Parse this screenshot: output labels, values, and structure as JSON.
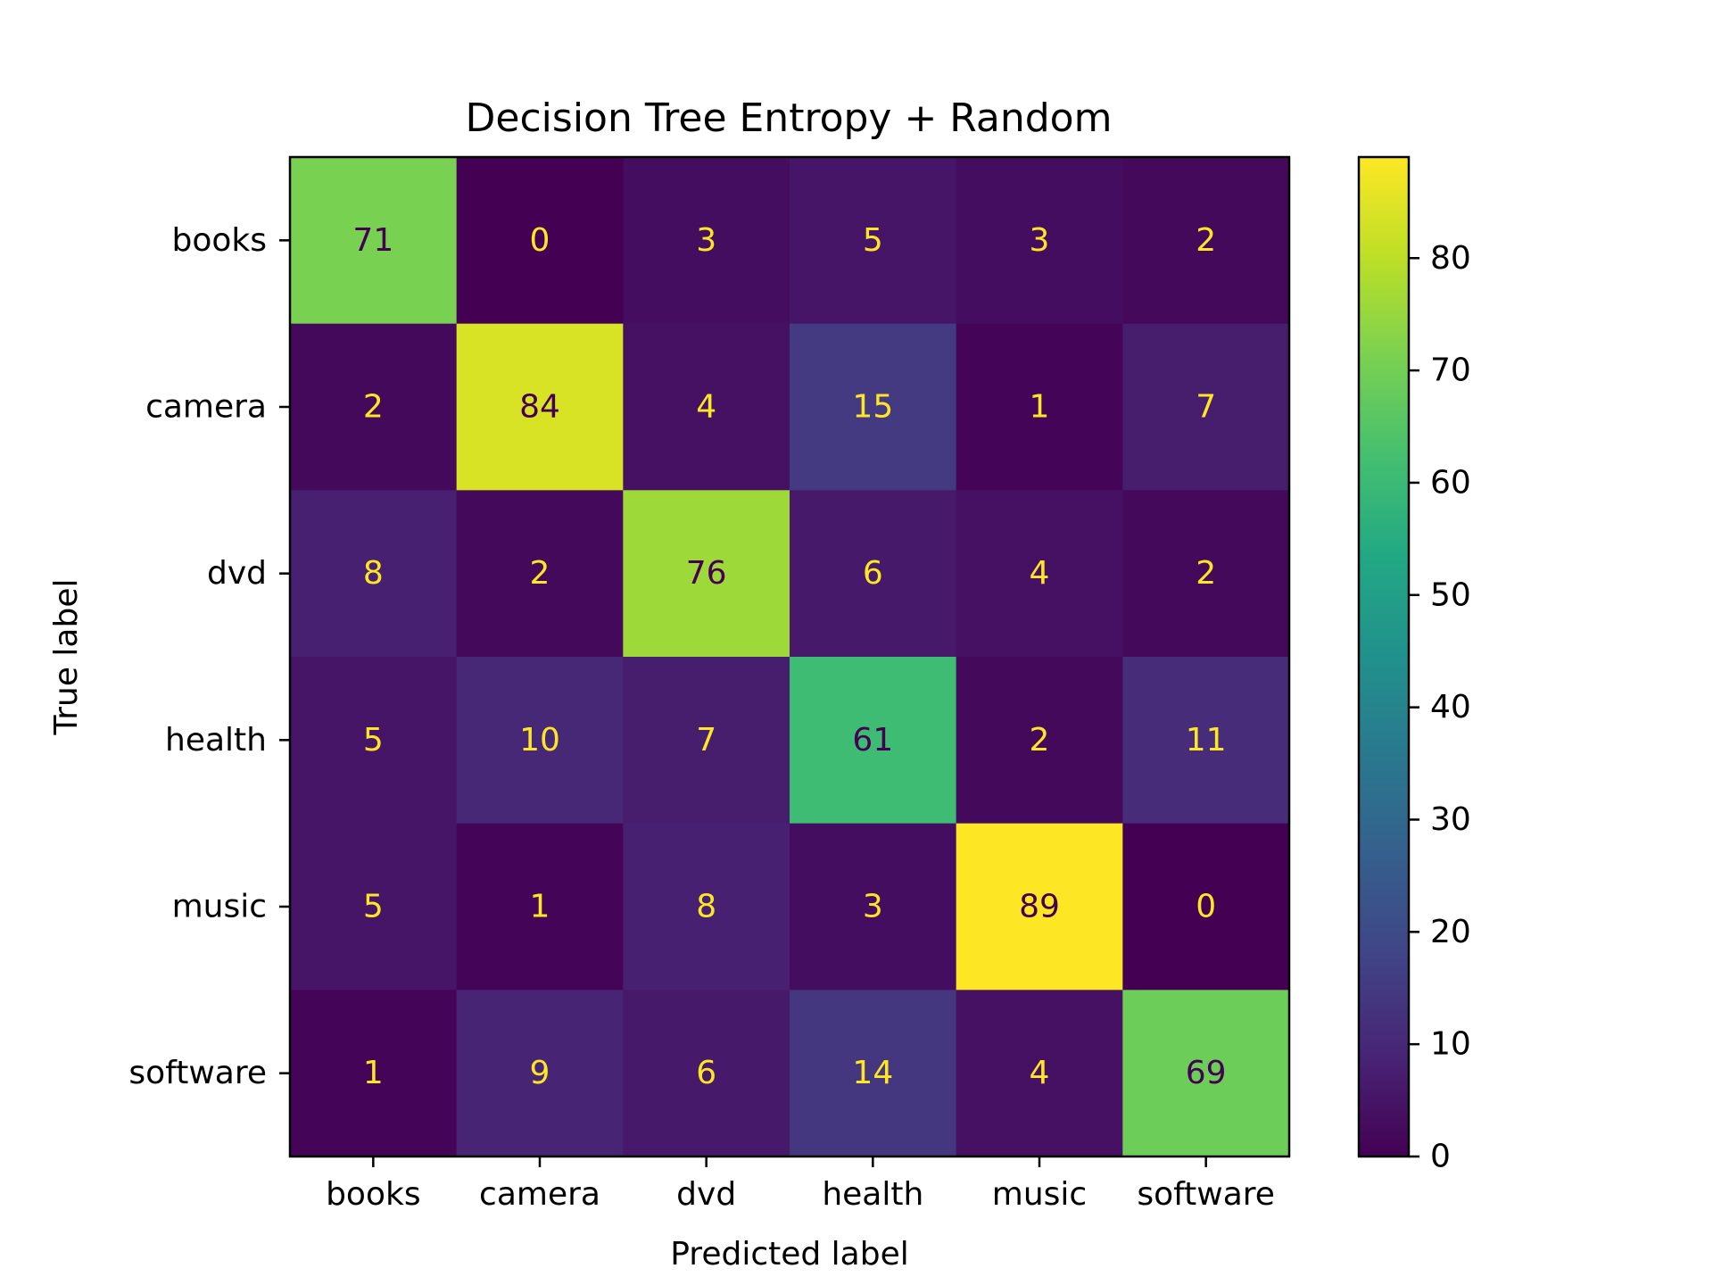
{
  "chart_data": {
    "type": "heatmap",
    "title": "Decision Tree Entropy + Random",
    "xlabel": "Predicted label",
    "ylabel": "True label",
    "x_categories": [
      "books",
      "camera",
      "dvd",
      "health",
      "music",
      "software"
    ],
    "y_categories": [
      "books",
      "camera",
      "dvd",
      "health",
      "music",
      "software"
    ],
    "values": [
      [
        71,
        0,
        3,
        5,
        3,
        2
      ],
      [
        2,
        84,
        4,
        15,
        1,
        7
      ],
      [
        8,
        2,
        76,
        6,
        4,
        2
      ],
      [
        5,
        10,
        7,
        61,
        2,
        11
      ],
      [
        5,
        1,
        8,
        3,
        89,
        0
      ],
      [
        1,
        9,
        6,
        14,
        4,
        69
      ]
    ],
    "colormap": "viridis",
    "color_range": [
      0,
      89
    ],
    "colorbar_ticks": [
      0,
      10,
      20,
      30,
      40,
      50,
      60,
      70,
      80
    ],
    "text_color_light": "#fde725",
    "text_color_dark": "#440154",
    "grid": false
  }
}
